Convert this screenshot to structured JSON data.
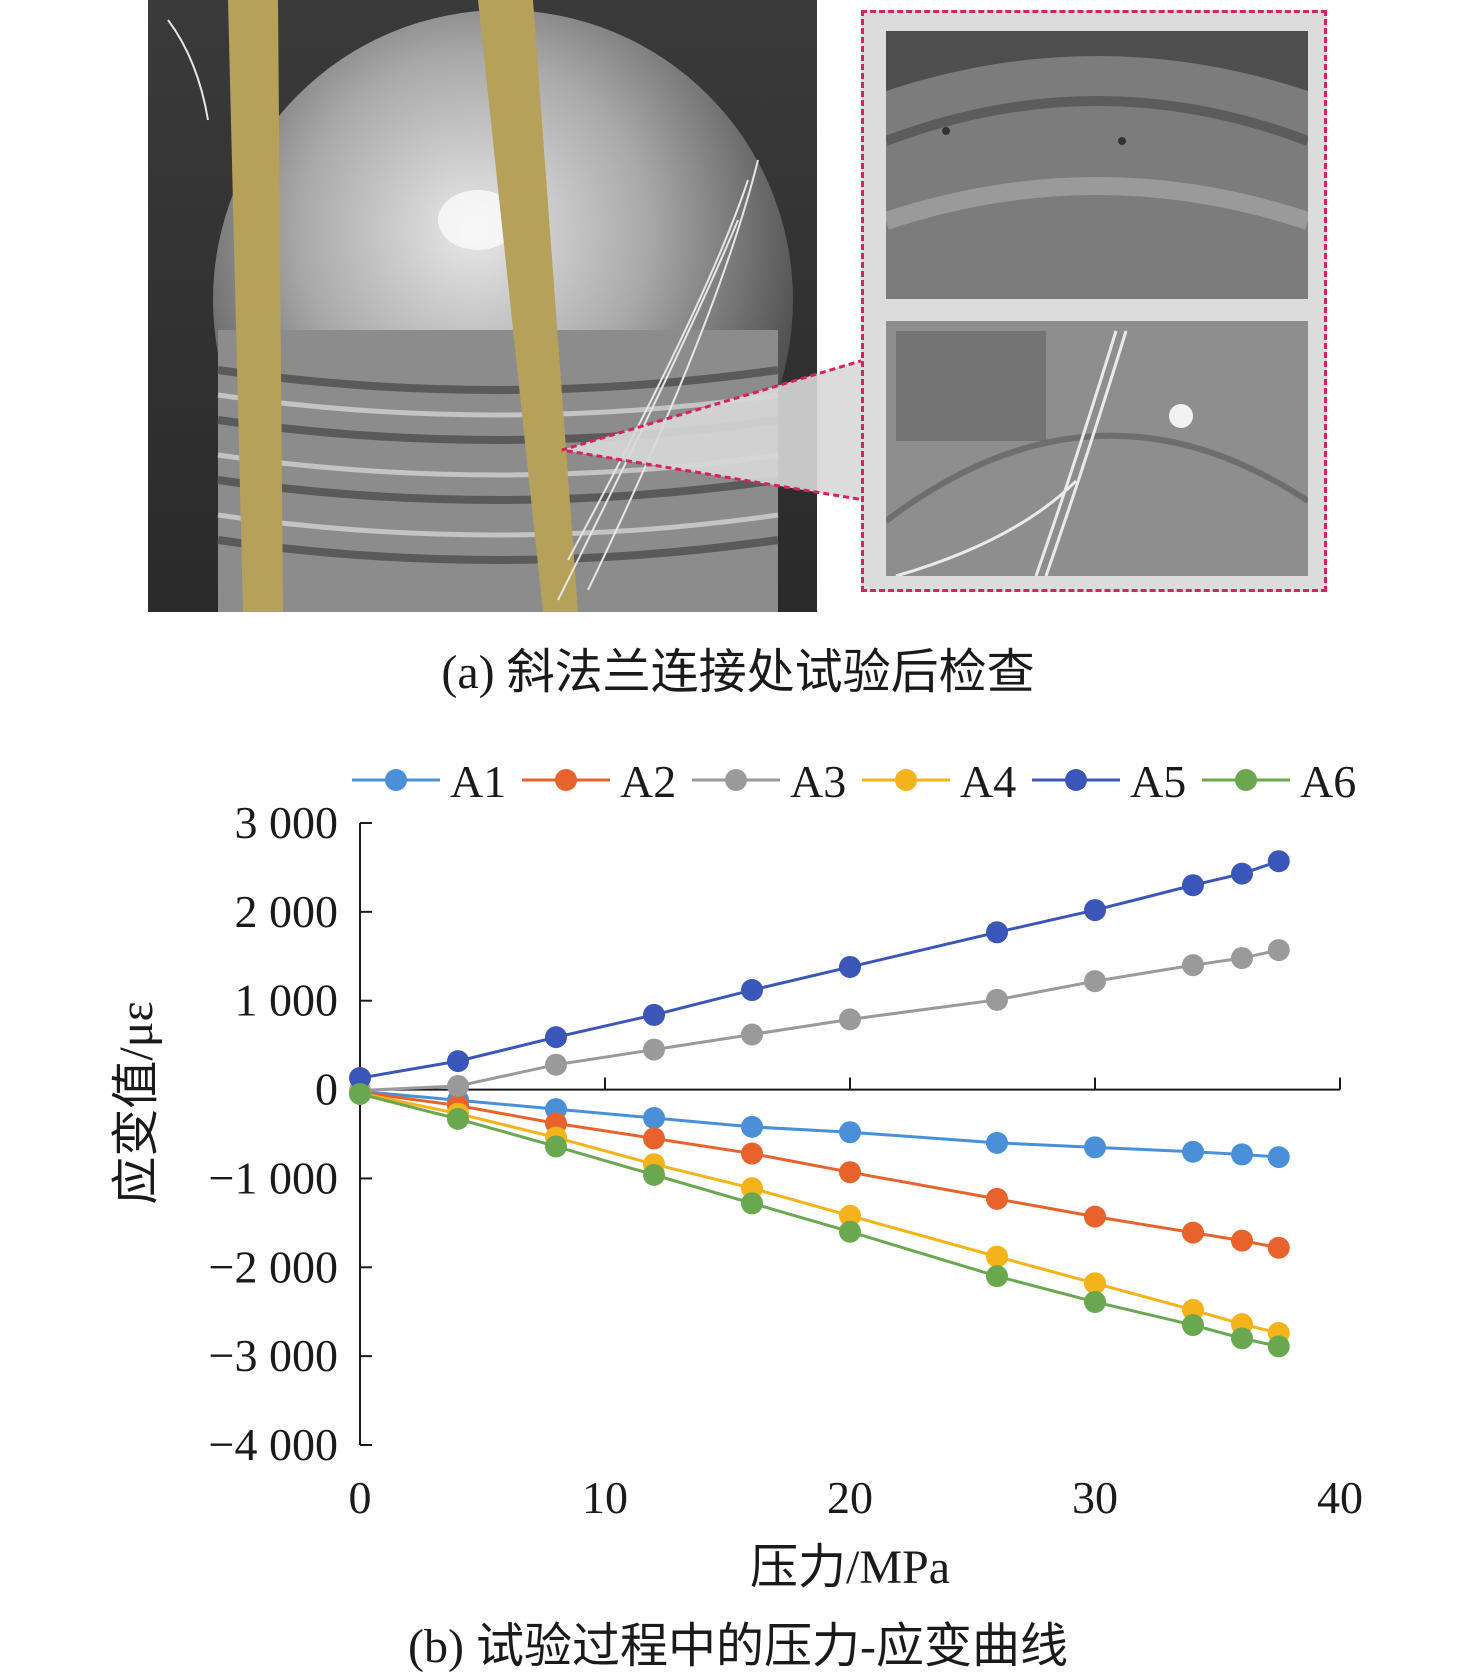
{
  "panel_a": {
    "caption": "(a) 斜法兰连接处试验后检查"
  },
  "panel_b": {
    "caption": "(b) 试验过程中的压力-应变曲线"
  },
  "chart_data": {
    "type": "line",
    "xlabel": "压力/MPa",
    "ylabel": "应变值/με",
    "xlim": [
      0,
      40
    ],
    "ylim": [
      -4000,
      3000
    ],
    "xticks": [
      0,
      10,
      20,
      30,
      40
    ],
    "xtick_labels": [
      "0",
      "10",
      "20",
      "30",
      "40"
    ],
    "yticks": [
      3000,
      2000,
      1000,
      0,
      -1000,
      -2000,
      -3000,
      -4000
    ],
    "ytick_labels": [
      "3 000",
      "2 000",
      "1 000",
      "0",
      "−1 000",
      "−2 000",
      "−3 000",
      "−4 000"
    ],
    "legend_position": "top",
    "x": [
      0,
      4,
      8,
      12,
      16,
      20,
      26,
      30,
      34,
      36,
      37.5
    ],
    "series": [
      {
        "name": "A1",
        "color": "#4a90d9",
        "values": [
          -20,
          -120,
          -220,
          -320,
          -420,
          -480,
          -600,
          -650,
          -700,
          -730,
          -760
        ]
      },
      {
        "name": "A2",
        "color": "#e8632c",
        "values": [
          -30,
          -180,
          -380,
          -550,
          -720,
          -930,
          -1230,
          -1430,
          -1610,
          -1700,
          -1780
        ]
      },
      {
        "name": "A3",
        "color": "#9a9a9a",
        "values": [
          -10,
          40,
          280,
          450,
          620,
          790,
          1010,
          1220,
          1400,
          1480,
          1570
        ]
      },
      {
        "name": "A4",
        "color": "#f5b31b",
        "values": [
          -40,
          -270,
          -540,
          -840,
          -1110,
          -1420,
          -1880,
          -2180,
          -2480,
          -2640,
          -2740
        ]
      },
      {
        "name": "A5",
        "color": "#3a56b8",
        "values": [
          130,
          320,
          590,
          840,
          1120,
          1380,
          1770,
          2020,
          2300,
          2430,
          2570
        ]
      },
      {
        "name": "A6",
        "color": "#6aa84f",
        "values": [
          -50,
          -330,
          -640,
          -960,
          -1280,
          -1600,
          -2100,
          -2390,
          -2650,
          -2800,
          -2890
        ]
      }
    ]
  }
}
